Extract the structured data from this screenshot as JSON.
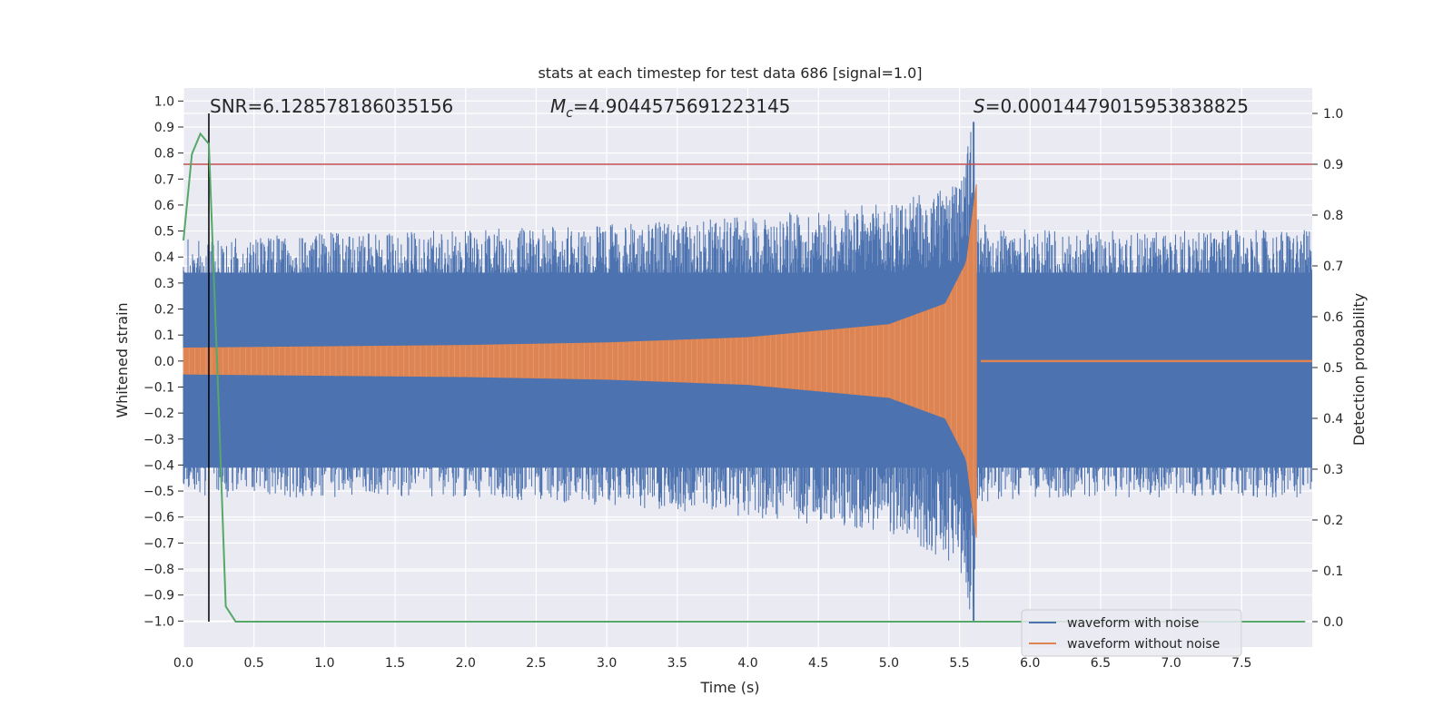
{
  "chart_data": {
    "type": "line",
    "title": "stats at each timestep for test data 686 [signal=1.0]",
    "xlabel": "Time (s)",
    "ylabel_left": "Whitened strain",
    "ylabel_right": "Detection probability",
    "xlim": [
      0.0,
      8.0
    ],
    "ylim_left": [
      -1.1,
      1.05
    ],
    "ylim_right": [
      -0.05,
      1.05
    ],
    "x_ticks": [
      "0.0",
      "0.5",
      "1.0",
      "1.5",
      "2.0",
      "2.5",
      "3.0",
      "3.5",
      "4.0",
      "4.5",
      "5.0",
      "5.5",
      "6.0",
      "6.5",
      "7.0",
      "7.5"
    ],
    "x_tick_values": [
      0.0,
      0.5,
      1.0,
      1.5,
      2.0,
      2.5,
      3.0,
      3.5,
      4.0,
      4.5,
      5.0,
      5.5,
      6.0,
      6.5,
      7.0,
      7.5
    ],
    "y_left_ticks": [
      "1.0",
      "0.9",
      "0.8",
      "0.7",
      "0.6",
      "0.5",
      "0.4",
      "0.3",
      "0.2",
      "0.1",
      "0.0",
      "−0.1",
      "−0.2",
      "−0.3",
      "−0.4",
      "−0.5",
      "−0.6",
      "−0.7",
      "−0.8",
      "−0.9",
      "−1.0"
    ],
    "y_left_tick_values": [
      1.0,
      0.9,
      0.8,
      0.7,
      0.6,
      0.5,
      0.4,
      0.3,
      0.2,
      0.1,
      0.0,
      -0.1,
      -0.2,
      -0.3,
      -0.4,
      -0.5,
      -0.6,
      -0.7,
      -0.8,
      -0.9,
      -1.0
    ],
    "y_right_ticks": [
      "1.0",
      "0.9",
      "0.8",
      "0.7",
      "0.6",
      "0.5",
      "0.4",
      "0.3",
      "0.2",
      "0.1",
      "0.0"
    ],
    "y_right_tick_values": [
      1.0,
      0.9,
      0.8,
      0.7,
      0.6,
      0.5,
      0.4,
      0.3,
      0.2,
      0.1,
      0.0
    ],
    "annotations": {
      "snr": "SNR=6.128578186035156",
      "mc_symbol": "M",
      "mc_subscript": "c",
      "mc_value": "=4.9044575691223145",
      "s_symbol": "S",
      "s_value": "=0.00014479015953838825"
    },
    "series": [
      {
        "name": "waveform with noise",
        "color": "#4c72b0",
        "axis": "left",
        "description_points": {
          "t": [
            0.0,
            1.0,
            2.0,
            3.0,
            4.0,
            5.0,
            5.5,
            5.6,
            5.62,
            6.0,
            7.0,
            8.0
          ],
          "upper_typical": [
            0.45,
            0.47,
            0.48,
            0.5,
            0.53,
            0.58,
            0.65,
            0.92,
            0.52,
            0.48,
            0.48,
            0.48
          ],
          "lower_typical": [
            -0.5,
            -0.5,
            -0.5,
            -0.53,
            -0.57,
            -0.63,
            -0.75,
            -1.0,
            -0.52,
            -0.5,
            -0.5,
            -0.5
          ]
        }
      },
      {
        "name": "waveform without noise",
        "color": "#dd8452",
        "axis": "left",
        "description_points": {
          "t": [
            0.0,
            1.0,
            2.0,
            3.0,
            4.0,
            5.0,
            5.4,
            5.55,
            5.62,
            5.65,
            8.0
          ],
          "amplitude": [
            0.05,
            0.055,
            0.06,
            0.07,
            0.09,
            0.14,
            0.22,
            0.38,
            0.68,
            0.0,
            0.0
          ]
        }
      },
      {
        "name": "detection probability",
        "color": "#55a868",
        "axis": "right",
        "x": [
          0.0,
          0.06,
          0.12,
          0.18,
          0.24,
          0.3,
          0.37,
          0.5,
          1.0,
          2.0,
          3.0,
          4.0,
          5.0,
          6.0,
          7.0,
          7.95
        ],
        "values": [
          0.75,
          0.92,
          0.96,
          0.94,
          0.5,
          0.03,
          0.0,
          0.0,
          0.0,
          0.0,
          0.0,
          0.0,
          0.0,
          0.0,
          0.0,
          0.0
        ]
      }
    ],
    "threshold_line": {
      "axis": "right",
      "value": 0.9,
      "color": "#c44e52"
    },
    "vertical_marker": {
      "x": 0.18,
      "color": "#000000"
    },
    "legend": {
      "position": "lower-right",
      "entries": [
        {
          "label": "waveform with noise",
          "color": "#4c72b0"
        },
        {
          "label": "waveform without noise",
          "color": "#dd8452"
        }
      ]
    },
    "grid": true,
    "background_color": "#eaeaf2"
  }
}
